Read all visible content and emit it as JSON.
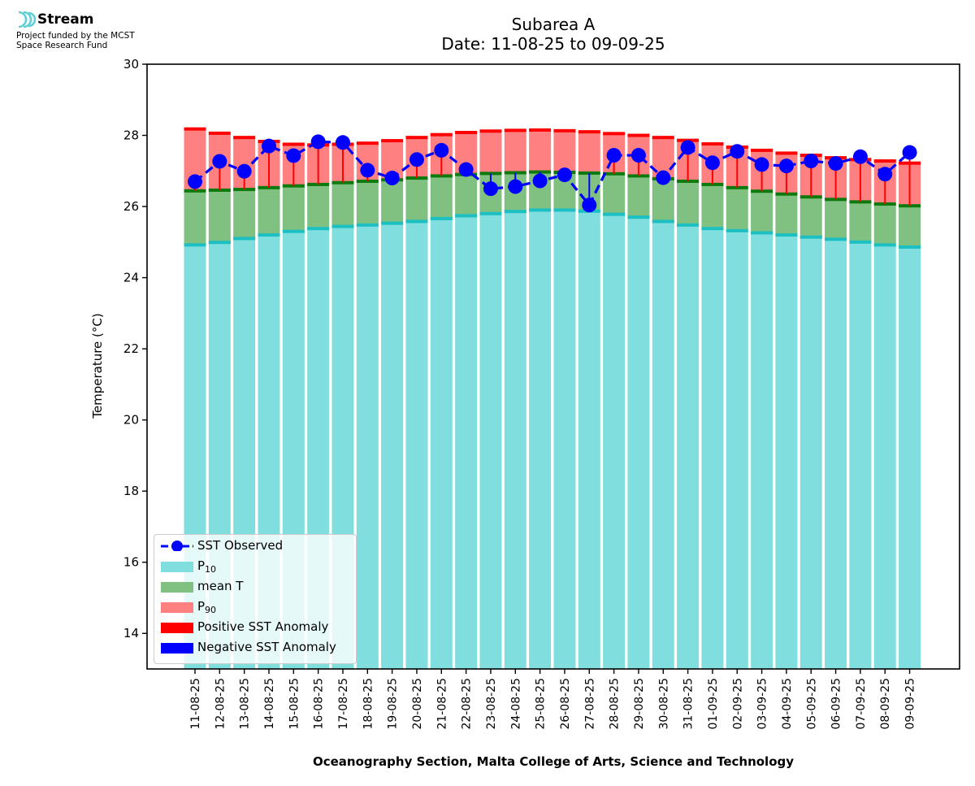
{
  "logo": {
    "name": "Stream",
    "line1": "Project funded by the MCST",
    "line2": "Space Research Fund"
  },
  "colors": {
    "p10": "#80dedf",
    "p10_edge": "#1cbfc2",
    "mean": "#80c080",
    "mean_edge": "#0c7a0c",
    "p90": "#ff8080",
    "p90_edge": "#ff0000",
    "positive_anomaly": "#ff0000",
    "negative_anomaly": "#0000ff",
    "observed": "#0000ff"
  },
  "chart_data": {
    "type": "bar",
    "title": "Subarea A",
    "subtitle": "Date: 11-08-25 to 09-09-25",
    "xlabel": "Oceanography Section, Malta College of Arts, Science and Technology",
    "ylabel": "Temperature (°C)",
    "ylim": [
      13,
      30
    ],
    "yticks": [
      14,
      16,
      18,
      20,
      22,
      24,
      26,
      28,
      30
    ],
    "grid": false,
    "legend_position": "lower-left",
    "categories": [
      "11-08-25",
      "12-08-25",
      "13-08-25",
      "14-08-25",
      "15-08-25",
      "16-08-25",
      "17-08-25",
      "18-08-25",
      "19-08-25",
      "20-08-25",
      "21-08-25",
      "22-08-25",
      "23-08-25",
      "24-08-25",
      "25-08-25",
      "26-08-25",
      "27-08-25",
      "28-08-25",
      "29-08-25",
      "30-08-25",
      "31-08-25",
      "01-09-25",
      "02-09-25",
      "03-09-25",
      "04-09-25",
      "05-09-25",
      "06-09-25",
      "07-09-25",
      "08-09-25",
      "09-09-25"
    ],
    "series": [
      {
        "name": "SST Observed",
        "values": [
          26.7,
          27.27,
          26.99,
          27.7,
          27.43,
          27.82,
          27.8,
          27.02,
          26.8,
          27.32,
          27.58,
          27.04,
          26.5,
          26.56,
          26.72,
          26.89,
          26.04,
          27.44,
          27.44,
          26.81,
          27.66,
          27.23,
          27.55,
          27.18,
          27.14,
          27.28,
          27.21,
          27.4,
          26.91,
          27.52
        ]
      },
      {
        "name": "P10",
        "label": "P",
        "label_sub": "10",
        "values": [
          24.92,
          24.99,
          25.1,
          25.2,
          25.3,
          25.38,
          25.44,
          25.48,
          25.53,
          25.58,
          25.66,
          25.74,
          25.8,
          25.86,
          25.9,
          25.9,
          25.87,
          25.78,
          25.7,
          25.58,
          25.48,
          25.38,
          25.32,
          25.26,
          25.2,
          25.14,
          25.08,
          25.0,
          24.92,
          24.86
        ]
      },
      {
        "name": "mean T",
        "values": [
          26.44,
          26.46,
          26.48,
          26.53,
          26.58,
          26.62,
          26.67,
          26.71,
          26.75,
          26.8,
          26.86,
          26.9,
          26.93,
          26.95,
          26.97,
          26.96,
          26.94,
          26.92,
          26.86,
          26.78,
          26.71,
          26.62,
          26.53,
          26.43,
          26.35,
          26.27,
          26.2,
          26.13,
          26.07,
          26.02
        ]
      },
      {
        "name": "P90",
        "label": "P",
        "label_sub": "90",
        "values": [
          28.18,
          28.06,
          27.94,
          27.83,
          27.75,
          27.73,
          27.75,
          27.78,
          27.85,
          27.94,
          28.02,
          28.08,
          28.12,
          28.14,
          28.15,
          28.13,
          28.1,
          28.05,
          28.0,
          27.94,
          27.86,
          27.76,
          27.67,
          27.58,
          27.5,
          27.44,
          27.37,
          27.32,
          27.28,
          27.22
        ]
      }
    ],
    "legend": [
      {
        "name": "SST Observed"
      },
      {
        "name": "P",
        "sub": "10"
      },
      {
        "name": "mean T"
      },
      {
        "name": "P",
        "sub": "90"
      },
      {
        "name": "Positive SST Anomaly"
      },
      {
        "name": "Negative SST Anomaly"
      }
    ]
  }
}
